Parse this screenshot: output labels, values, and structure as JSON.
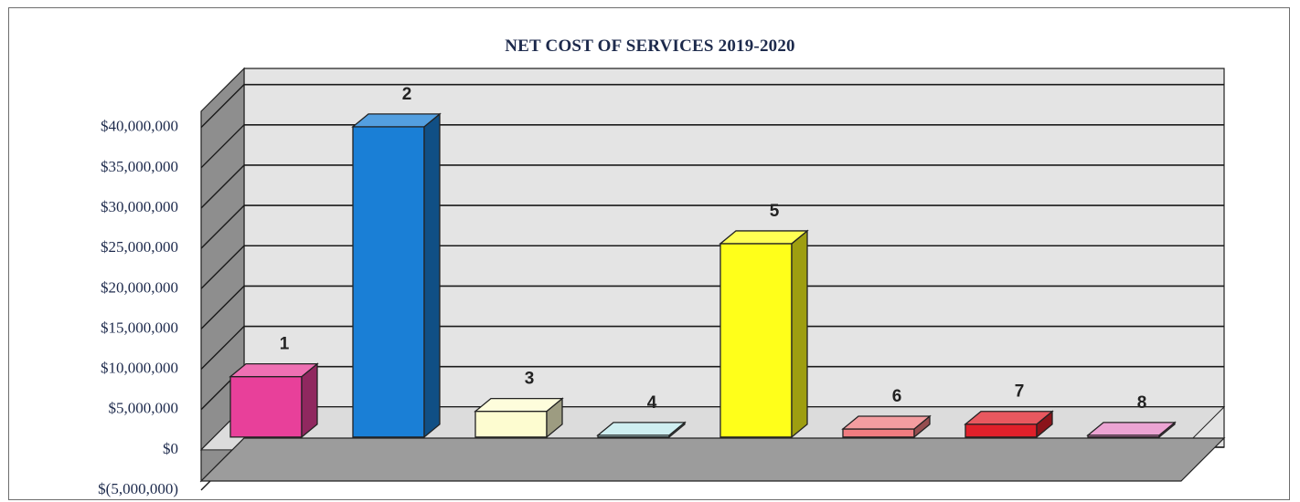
{
  "chart_data": {
    "type": "bar",
    "title": "NET COST OF SERVICES 2019-2020",
    "categories": [
      "1",
      "2",
      "3",
      "4",
      "5",
      "6",
      "7",
      "8"
    ],
    "values": [
      7500000,
      38500000,
      3200000,
      100000,
      24000000,
      1000000,
      1600000,
      100000
    ],
    "data_labels": [
      "1",
      "2",
      "3",
      "4",
      "5",
      "6",
      "7",
      "8"
    ],
    "colors": [
      "#e8409a",
      "#1a7fd6",
      "#fdfcd0",
      "#bfe9ec",
      "#ffff1a",
      "#f07c80",
      "#e0202a",
      "#e685c4"
    ],
    "yticks": [
      -5000000,
      0,
      5000000,
      10000000,
      15000000,
      20000000,
      25000000,
      30000000,
      35000000,
      40000000
    ],
    "ytick_labels": [
      "$(5,000,000)",
      "$0",
      "$5,000,000",
      "$10,000,000",
      "$15,000,000",
      "$20,000,000",
      "$25,000,000",
      "$30,000,000",
      "$35,000,000",
      "$40,000,000"
    ],
    "ylim": [
      -5000000,
      40000000
    ],
    "grid": true,
    "legend": "none",
    "xlabel": "",
    "ylabel": ""
  }
}
